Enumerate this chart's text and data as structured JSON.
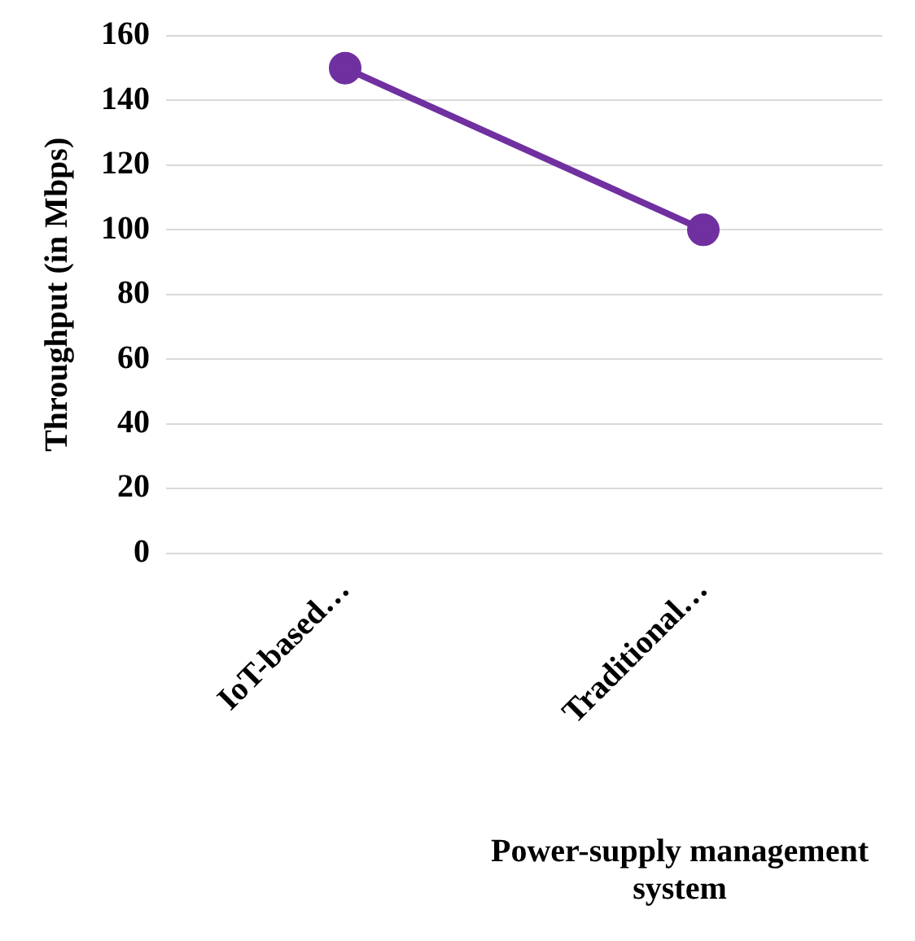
{
  "chart_data": {
    "type": "line",
    "xlabel": "Power-supply management system",
    "ylabel": "Throughput (in Mbps)",
    "categories": [
      "IoT-based…",
      "Traditional…"
    ],
    "series": [
      {
        "color": "#7030a0",
        "values": [
          150,
          100
        ]
      }
    ],
    "ylim": [
      0,
      160
    ],
    "yticks": [
      0,
      20,
      40,
      60,
      80,
      100,
      120,
      140,
      160
    ],
    "grid": "y",
    "legend": false,
    "marker": "circle",
    "line_style": "solid"
  }
}
